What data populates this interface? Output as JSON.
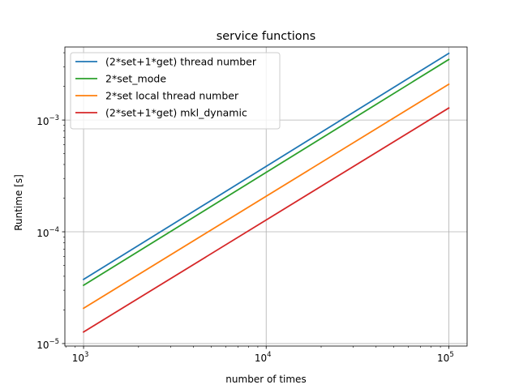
{
  "chart_data": {
    "type": "line",
    "title": "service functions",
    "xlabel": "number of times",
    "ylabel": "Runtime [s]",
    "xscale": "log",
    "yscale": "log",
    "xlim": [
      790,
      126000
    ],
    "ylim": [
      9.5e-06,
      0.0045
    ],
    "grid": true,
    "legend_position": "top-left",
    "x_ticks": [
      {
        "value": 1000,
        "base": "10",
        "exp": "3"
      },
      {
        "value": 10000,
        "base": "10",
        "exp": "4"
      },
      {
        "value": 100000,
        "base": "10",
        "exp": "5"
      }
    ],
    "y_ticks": [
      {
        "value": 1e-05,
        "base": "10",
        "exp": "−5"
      },
      {
        "value": 0.0001,
        "base": "10",
        "exp": "−4"
      },
      {
        "value": 0.001,
        "base": "10",
        "exp": "−3"
      }
    ],
    "series": [
      {
        "name": "(2*set+1*get) thread number",
        "color": "#1f77b4",
        "x": [
          1000,
          100000
        ],
        "y": [
          3.75e-05,
          0.00395
        ]
      },
      {
        "name": "2*set_mode",
        "color": "#2ca02c",
        "x": [
          1000,
          100000
        ],
        "y": [
          3.32e-05,
          0.00348
        ]
      },
      {
        "name": "2*set local thread number",
        "color": "#ff7f0e",
        "x": [
          1000,
          100000
        ],
        "y": [
          2.07e-05,
          0.00209
        ]
      },
      {
        "name": "(2*set+1*get) mkl_dynamic",
        "color": "#d62728",
        "x": [
          1000,
          100000
        ],
        "y": [
          1.27e-05,
          0.00128
        ]
      }
    ]
  }
}
